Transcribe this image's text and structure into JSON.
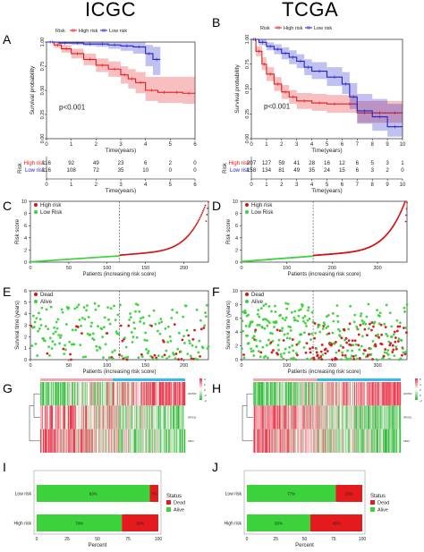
{
  "column_titles": {
    "left": "ICGC",
    "right": "TCGA"
  },
  "panel_letters": [
    "A",
    "B",
    "C",
    "D",
    "E",
    "F",
    "G",
    "H",
    "I",
    "J"
  ],
  "colors": {
    "high": "#e41a1c",
    "low": "#2222cc",
    "dead": "#d41414",
    "alive": "#3cd23c",
    "heat_high": "#e8374a",
    "heat_low": "#2fba3a",
    "anno_bar": "#33bde6"
  },
  "chart_data": [
    {
      "id": "A",
      "type": "line",
      "title": "",
      "xlabel": "Time(years)",
      "ylabel": "Survival probability",
      "xlim": [
        0,
        6
      ],
      "ylim": [
        0,
        1
      ],
      "xticks": [
        "0",
        "1",
        "2",
        "3",
        "4",
        "5",
        "6"
      ],
      "yticks": [
        "0.00",
        "0.25",
        "0.50",
        "0.75",
        "1.00"
      ],
      "legend": {
        "title": "Risk",
        "entries": [
          "High risk",
          "Low risk"
        ],
        "placement": "top"
      },
      "pvalue": "p<0.001",
      "series": [
        {
          "name": "High risk",
          "color": "#e41a1c",
          "x": [
            0,
            0.3,
            0.6,
            1.0,
            1.5,
            2.0,
            2.5,
            3.0,
            3.3,
            3.6,
            4.0,
            4.5,
            5.0,
            5.5,
            6.0
          ],
          "y": [
            1.0,
            0.97,
            0.93,
            0.88,
            0.82,
            0.76,
            0.72,
            0.66,
            0.62,
            0.58,
            0.5,
            0.48,
            0.48,
            0.47,
            0.47
          ],
          "lower": [
            1.0,
            0.94,
            0.89,
            0.83,
            0.76,
            0.69,
            0.64,
            0.57,
            0.52,
            0.47,
            0.39,
            0.37,
            0.37,
            0.36,
            0.36
          ],
          "upper": [
            1.0,
            1.0,
            0.97,
            0.93,
            0.88,
            0.83,
            0.8,
            0.75,
            0.72,
            0.69,
            0.64,
            0.64,
            0.64,
            0.64,
            0.64
          ]
        },
        {
          "name": "Low risk",
          "color": "#2222cc",
          "x": [
            0,
            0.5,
            1.0,
            1.5,
            2.0,
            2.5,
            3.0,
            3.5,
            4.0,
            4.3,
            4.6
          ],
          "y": [
            1.0,
            0.99,
            0.99,
            0.98,
            0.98,
            0.97,
            0.96,
            0.95,
            0.88,
            0.82,
            0.82
          ],
          "lower": [
            1.0,
            0.98,
            0.97,
            0.96,
            0.95,
            0.93,
            0.91,
            0.88,
            0.75,
            0.66,
            0.66
          ],
          "upper": [
            1.0,
            1.0,
            1.0,
            1.0,
            1.0,
            1.0,
            1.0,
            1.0,
            0.97,
            0.95,
            0.95
          ]
        }
      ],
      "risk_table": {
        "row_title": "Risk",
        "times": [
          "0",
          "1",
          "2",
          "3",
          "4",
          "5",
          "6"
        ],
        "rows": [
          {
            "name": "High risk",
            "color": "#e41a1c",
            "counts": [
              "116",
              "92",
              "49",
              "23",
              "6",
              "2",
              "0"
            ]
          },
          {
            "name": "Low risk",
            "color": "#2222cc",
            "counts": [
              "116",
              "108",
              "72",
              "35",
              "10",
              "0",
              "0"
            ]
          }
        ]
      }
    },
    {
      "id": "B",
      "type": "line",
      "title": "",
      "xlabel": "Time(years)",
      "ylabel": "Survival probability",
      "xlim": [
        0,
        10
      ],
      "ylim": [
        0,
        1
      ],
      "xticks": [
        "0",
        "1",
        "2",
        "3",
        "4",
        "5",
        "6",
        "7",
        "8",
        "9",
        "10"
      ],
      "yticks": [
        "0.00",
        "0.25",
        "0.50",
        "0.75",
        "1.00"
      ],
      "legend": {
        "title": "Risk",
        "entries": [
          "High risk",
          "Low risk"
        ],
        "placement": "top"
      },
      "pvalue": "p<0.001",
      "series": [
        {
          "name": "High risk",
          "color": "#e41a1c",
          "x": [
            0,
            0.3,
            0.7,
            1.0,
            1.5,
            2.0,
            2.5,
            3.0,
            4.0,
            5.0,
            6.0,
            7.0,
            8.0,
            9.0,
            10.0
          ],
          "y": [
            1.0,
            0.88,
            0.75,
            0.65,
            0.55,
            0.47,
            0.42,
            0.38,
            0.36,
            0.35,
            0.35,
            0.26,
            0.26,
            0.26,
            0.26
          ],
          "lower": [
            1.0,
            0.83,
            0.69,
            0.58,
            0.48,
            0.4,
            0.35,
            0.3,
            0.28,
            0.26,
            0.26,
            0.16,
            0.16,
            0.16,
            0.16
          ],
          "upper": [
            1.0,
            0.93,
            0.82,
            0.72,
            0.62,
            0.54,
            0.49,
            0.46,
            0.45,
            0.44,
            0.44,
            0.38,
            0.38,
            0.38,
            0.38
          ]
        },
        {
          "name": "Low risk",
          "color": "#2222cc",
          "x": [
            0,
            0.5,
            1.0,
            1.5,
            2.0,
            2.5,
            3.0,
            3.5,
            4.0,
            5.0,
            6.0,
            6.5,
            7.0,
            8.0,
            9.0,
            10.0
          ],
          "y": [
            1.0,
            0.97,
            0.93,
            0.9,
            0.86,
            0.82,
            0.78,
            0.72,
            0.68,
            0.62,
            0.55,
            0.42,
            0.28,
            0.22,
            0.12,
            0.12
          ],
          "lower": [
            1.0,
            0.94,
            0.89,
            0.85,
            0.8,
            0.75,
            0.71,
            0.64,
            0.6,
            0.53,
            0.45,
            0.3,
            0.15,
            0.08,
            0.02,
            0.02
          ],
          "upper": [
            1.0,
            1.0,
            0.97,
            0.95,
            0.92,
            0.89,
            0.85,
            0.8,
            0.77,
            0.72,
            0.67,
            0.56,
            0.45,
            0.4,
            0.35,
            0.35
          ]
        }
      ],
      "risk_table": {
        "row_title": "Risk",
        "times": [
          "0",
          "1",
          "2",
          "3",
          "4",
          "5",
          "6",
          "7",
          "8",
          "9",
          "10"
        ],
        "rows": [
          {
            "name": "High risk",
            "color": "#e41a1c",
            "counts": [
              "207",
              "127",
              "59",
              "41",
              "28",
              "16",
              "12",
              "6",
              "5",
              "3",
              "1"
            ]
          },
          {
            "name": "Low risk",
            "color": "#2222cc",
            "counts": [
              "158",
              "134",
              "81",
              "49",
              "35",
              "24",
              "15",
              "6",
              "3",
              "2",
              "0"
            ]
          }
        ]
      }
    },
    {
      "id": "C",
      "type": "scatter",
      "title": "",
      "xlabel": "Patients (increasing risk score)",
      "ylabel": "Risk score",
      "xlim": [
        0,
        232
      ],
      "ylim": [
        0,
        10
      ],
      "xticks": [
        "0",
        "50",
        "100",
        "150",
        "200"
      ],
      "yticks": [
        "0",
        "2",
        "4",
        "6",
        "8",
        "10"
      ],
      "cutoff": 116,
      "n": 232,
      "low": 0.05,
      "high_start": 1.15,
      "max": 9.9,
      "legend": {
        "entries": [
          "High risk",
          "Low Risk"
        ],
        "placement": "top-left"
      }
    },
    {
      "id": "D",
      "type": "scatter",
      "title": "",
      "xlabel": "Patients (increasing risk score)",
      "ylabel": "Risk score",
      "xlim": [
        0,
        365
      ],
      "ylim": [
        0,
        10
      ],
      "xticks": [
        "0",
        "100",
        "200",
        "300"
      ],
      "yticks": [
        "0",
        "2",
        "4",
        "6",
        "8",
        "10"
      ],
      "cutoff": 158,
      "n": 365,
      "low": 0.1,
      "high_start": 1.1,
      "max": 9.8,
      "legend": {
        "entries": [
          "High risk",
          "Low Risk"
        ],
        "placement": "top-left"
      }
    },
    {
      "id": "E",
      "type": "scatter",
      "title": "",
      "xlabel": "Patients (increasing risk score)",
      "ylabel": "Survival time (years)",
      "xlim": [
        0,
        232
      ],
      "ylim": [
        0,
        6
      ],
      "xticks": [
        "0",
        "50",
        "100",
        "150",
        "200"
      ],
      "yticks": [
        "0",
        "1",
        "2",
        "3",
        "4",
        "5",
        "6"
      ],
      "cutoff": 116,
      "n": 232,
      "deadfrac_low": 0.08,
      "deadfrac_high": 0.32,
      "legend": {
        "entries": [
          "Dead",
          "Alive"
        ],
        "placement": "top-left"
      }
    },
    {
      "id": "F",
      "type": "scatter",
      "title": "",
      "xlabel": "Patients (increasing risk score)",
      "ylabel": "Survival time (years)",
      "xlim": [
        0,
        365
      ],
      "ylim": [
        0,
        10
      ],
      "xticks": [
        "0",
        "100",
        "200",
        "300"
      ],
      "yticks": [
        "0",
        "2",
        "4",
        "6",
        "8",
        "10"
      ],
      "cutoff": 158,
      "n": 365,
      "deadfrac_low": 0.12,
      "deadfrac_high": 0.45,
      "legend": {
        "entries": [
          "Dead",
          "Alive"
        ],
        "placement": "top-left"
      }
    },
    {
      "id": "G",
      "type": "heatmap",
      "title": "",
      "rows": 3,
      "cols": 232,
      "cutoff": 116,
      "row_labels": [
        "LRATD2",
        "SPAG11",
        "CBX4"
      ],
      "scale": [
        "4",
        "2",
        "0",
        "-2",
        "-4"
      ]
    },
    {
      "id": "H",
      "type": "heatmap",
      "title": "",
      "rows": 3,
      "cols": 365,
      "cutoff": 158,
      "row_labels": [
        "LRATD2",
        "SPAG11",
        "CBX4"
      ],
      "scale": [
        "6",
        "4",
        "2",
        "0",
        "-2"
      ]
    },
    {
      "id": "I",
      "type": "bar",
      "title": "",
      "categories": [
        "Low risk",
        "High risk"
      ],
      "xlabel": "Percent",
      "xticks": [
        "0",
        "25",
        "50",
        "75",
        "100"
      ],
      "series": [
        {
          "name": "Alive",
          "color": "#3cd23c",
          "values": [
            93,
            70
          ],
          "labels": [
            "93%",
            "70%"
          ]
        },
        {
          "name": "Dead",
          "color": "#e41a1c",
          "values": [
            7,
            30
          ],
          "labels": [
            "7%",
            "30%"
          ]
        }
      ],
      "legend": {
        "title": "Status",
        "entries": [
          "Dead",
          "Alive"
        ],
        "placement": "right"
      }
    },
    {
      "id": "J",
      "type": "bar",
      "title": "",
      "categories": [
        "Low risk",
        "High risk"
      ],
      "xlabel": "Percent",
      "xticks": [
        "0",
        "25",
        "50",
        "75",
        "100"
      ],
      "series": [
        {
          "name": "Alive",
          "color": "#3cd23c",
          "values": [
            77,
            55
          ],
          "labels": [
            "77%",
            "55%"
          ]
        },
        {
          "name": "Dead",
          "color": "#e41a1c",
          "values": [
            23,
            45
          ],
          "labels": [
            "23%",
            "45%"
          ]
        }
      ],
      "legend": {
        "title": "Status",
        "entries": [
          "Dead",
          "Alive"
        ],
        "placement": "right"
      }
    }
  ]
}
